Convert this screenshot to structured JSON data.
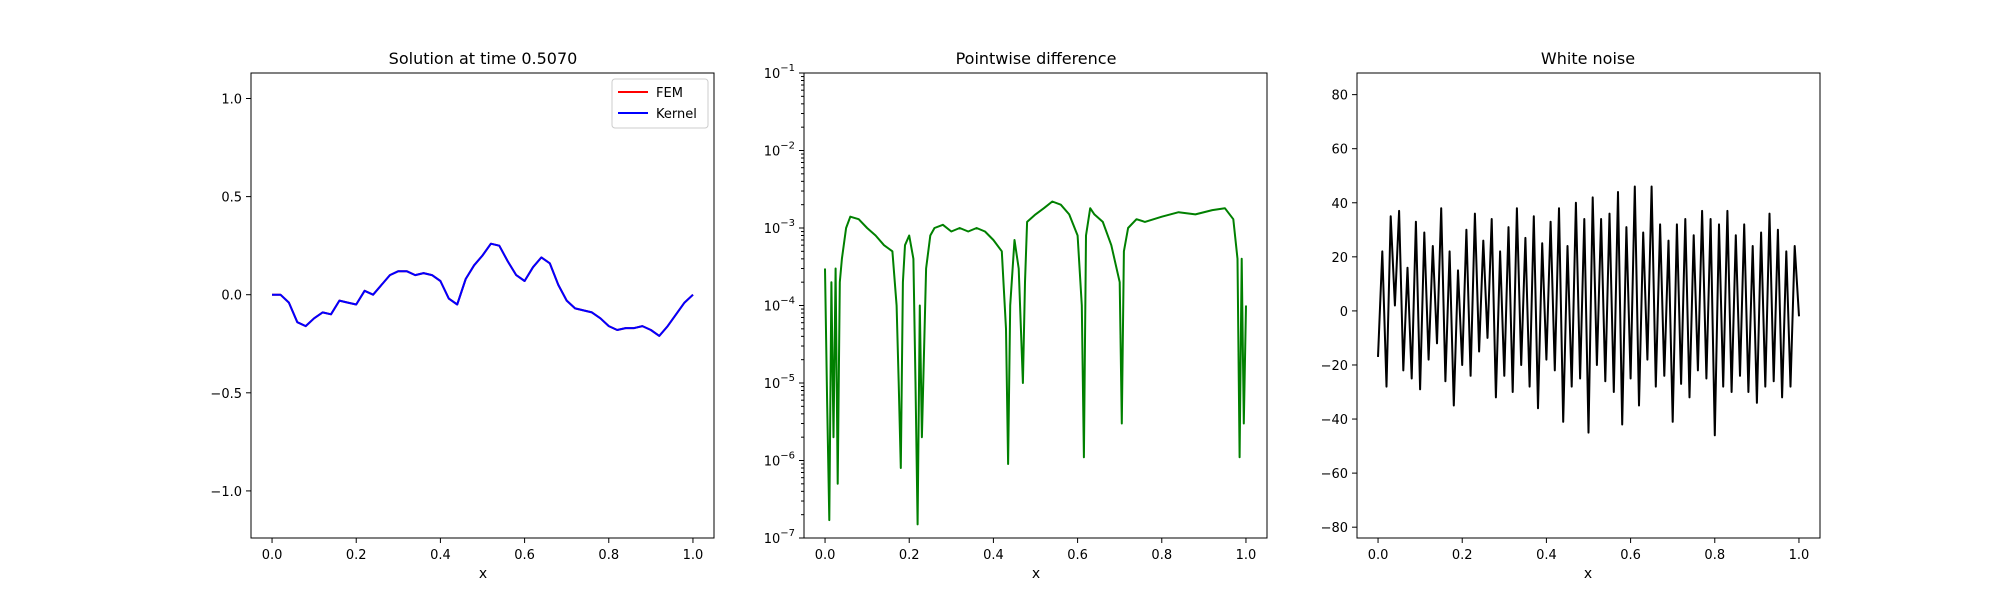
{
  "chart_data": [
    {
      "type": "line",
      "title": "Solution at time 0.5070",
      "xlabel": "x",
      "ylabel": "",
      "xlim": [
        -0.05,
        1.05
      ],
      "ylim": [
        -1.24,
        1.13
      ],
      "xticks": [
        0.0,
        0.2,
        0.4,
        0.6,
        0.8,
        1.0
      ],
      "xtick_labels": [
        "0.0",
        "0.2",
        "0.4",
        "0.6",
        "0.8",
        "1.0"
      ],
      "yticks": [
        -1.0,
        -0.5,
        0.0,
        0.5,
        1.0
      ],
      "ytick_labels": [
        "−1.0",
        "−0.5",
        "0.0",
        "0.5",
        "1.0"
      ],
      "legend_position": "top-right",
      "series": [
        {
          "name": "FEM",
          "color": "#ff0000",
          "x": [
            0.0,
            0.02,
            0.04,
            0.06,
            0.08,
            0.1,
            0.12,
            0.14,
            0.16,
            0.18,
            0.2,
            0.22,
            0.24,
            0.26,
            0.28,
            0.3,
            0.32,
            0.34,
            0.36,
            0.38,
            0.4,
            0.42,
            0.44,
            0.46,
            0.48,
            0.5,
            0.52,
            0.54,
            0.56,
            0.58,
            0.6,
            0.62,
            0.64,
            0.66,
            0.68,
            0.7,
            0.72,
            0.74,
            0.76,
            0.78,
            0.8,
            0.82,
            0.84,
            0.86,
            0.88,
            0.9,
            0.92,
            0.94,
            0.96,
            0.98,
            1.0
          ],
          "y": [
            0.0,
            0.0,
            -0.04,
            -0.14,
            -0.16,
            -0.12,
            -0.09,
            -0.1,
            -0.03,
            -0.04,
            -0.05,
            0.02,
            0.0,
            0.05,
            0.1,
            0.12,
            0.12,
            0.1,
            0.11,
            0.1,
            0.07,
            -0.02,
            -0.05,
            0.08,
            0.15,
            0.2,
            0.26,
            0.25,
            0.17,
            0.1,
            0.07,
            0.14,
            0.19,
            0.16,
            0.05,
            -0.03,
            -0.07,
            -0.08,
            -0.09,
            -0.12,
            -0.16,
            -0.18,
            -0.17,
            -0.17,
            -0.16,
            -0.18,
            -0.21,
            -0.16,
            -0.1,
            -0.04,
            0.0
          ]
        },
        {
          "name": "Kernel",
          "color": "#0000ff",
          "x": [
            0.0,
            0.02,
            0.04,
            0.06,
            0.08,
            0.1,
            0.12,
            0.14,
            0.16,
            0.18,
            0.2,
            0.22,
            0.24,
            0.26,
            0.28,
            0.3,
            0.32,
            0.34,
            0.36,
            0.38,
            0.4,
            0.42,
            0.44,
            0.46,
            0.48,
            0.5,
            0.52,
            0.54,
            0.56,
            0.58,
            0.6,
            0.62,
            0.64,
            0.66,
            0.68,
            0.7,
            0.72,
            0.74,
            0.76,
            0.78,
            0.8,
            0.82,
            0.84,
            0.86,
            0.88,
            0.9,
            0.92,
            0.94,
            0.96,
            0.98,
            1.0
          ],
          "y": [
            0.0,
            0.0,
            -0.04,
            -0.14,
            -0.16,
            -0.12,
            -0.09,
            -0.1,
            -0.03,
            -0.04,
            -0.05,
            0.02,
            0.0,
            0.05,
            0.1,
            0.12,
            0.12,
            0.1,
            0.11,
            0.1,
            0.07,
            -0.02,
            -0.05,
            0.08,
            0.15,
            0.2,
            0.26,
            0.25,
            0.17,
            0.1,
            0.07,
            0.14,
            0.19,
            0.16,
            0.05,
            -0.03,
            -0.07,
            -0.08,
            -0.09,
            -0.12,
            -0.16,
            -0.18,
            -0.17,
            -0.17,
            -0.16,
            -0.18,
            -0.21,
            -0.16,
            -0.1,
            -0.04,
            0.0
          ]
        }
      ]
    },
    {
      "type": "line",
      "title": "Pointwise difference",
      "xlabel": "x",
      "ylabel": "",
      "yscale": "log",
      "xlim": [
        -0.05,
        1.05
      ],
      "ylim": [
        1e-07,
        0.1
      ],
      "xticks": [
        0.0,
        0.2,
        0.4,
        0.6,
        0.8,
        1.0
      ],
      "xtick_labels": [
        "0.0",
        "0.2",
        "0.4",
        "0.6",
        "0.8",
        "1.0"
      ],
      "yticks": [
        1e-07,
        1e-06,
        1e-05,
        0.0001,
        0.001,
        0.01,
        0.1
      ],
      "ytick_bases": [
        "10",
        "10",
        "10",
        "10",
        "10",
        "10",
        "10"
      ],
      "ytick_exponents": [
        "−7",
        "−6",
        "−5",
        "−4",
        "−3",
        "−2",
        "−1"
      ],
      "series": [
        {
          "color": "#008000",
          "x": [
            0.0,
            0.005,
            0.01,
            0.015,
            0.02,
            0.025,
            0.03,
            0.035,
            0.04,
            0.05,
            0.06,
            0.08,
            0.1,
            0.12,
            0.14,
            0.16,
            0.17,
            0.175,
            0.18,
            0.185,
            0.19,
            0.2,
            0.21,
            0.215,
            0.22,
            0.225,
            0.23,
            0.24,
            0.25,
            0.26,
            0.28,
            0.3,
            0.32,
            0.34,
            0.36,
            0.38,
            0.4,
            0.42,
            0.43,
            0.435,
            0.44,
            0.45,
            0.46,
            0.47,
            0.475,
            0.48,
            0.5,
            0.52,
            0.54,
            0.56,
            0.58,
            0.6,
            0.61,
            0.615,
            0.62,
            0.63,
            0.64,
            0.66,
            0.68,
            0.7,
            0.705,
            0.71,
            0.72,
            0.74,
            0.76,
            0.8,
            0.84,
            0.88,
            0.92,
            0.95,
            0.97,
            0.98,
            0.985,
            0.99,
            0.995,
            1.0
          ],
          "y": [
            0.0003,
            6e-06,
            1.7e-07,
            0.0002,
            2e-06,
            0.0003,
            5e-07,
            0.0002,
            0.0004,
            0.001,
            0.0014,
            0.0013,
            0.001,
            0.0008,
            0.0006,
            0.0005,
            0.0001,
            1e-05,
            8e-07,
            0.0002,
            0.0006,
            0.0008,
            0.0004,
            1e-05,
            1.5e-07,
            0.0001,
            2e-06,
            0.0003,
            0.0008,
            0.001,
            0.0011,
            0.0009,
            0.001,
            0.0009,
            0.001,
            0.0009,
            0.0007,
            0.0005,
            5e-05,
            9e-07,
            0.0001,
            0.0007,
            0.0003,
            1e-05,
            0.0002,
            0.0012,
            0.0015,
            0.0018,
            0.0022,
            0.002,
            0.0015,
            0.0008,
            0.0001,
            1.1e-06,
            0.0008,
            0.0018,
            0.0015,
            0.0012,
            0.0006,
            0.0002,
            3e-06,
            0.0005,
            0.001,
            0.0013,
            0.0012,
            0.0014,
            0.0016,
            0.0015,
            0.0017,
            0.0018,
            0.0013,
            0.0004,
            1.1e-06,
            0.0004,
            3e-06,
            0.0001
          ]
        }
      ]
    },
    {
      "type": "line",
      "title": "White noise",
      "xlabel": "x",
      "ylabel": "",
      "xlim": [
        -0.05,
        1.05
      ],
      "ylim": [
        -84,
        88
      ],
      "xticks": [
        0.0,
        0.2,
        0.4,
        0.6,
        0.8,
        1.0
      ],
      "xtick_labels": [
        "0.0",
        "0.2",
        "0.4",
        "0.6",
        "0.8",
        "1.0"
      ],
      "yticks": [
        -80,
        -60,
        -40,
        -20,
        0,
        20,
        40,
        60,
        80
      ],
      "ytick_labels": [
        "−80",
        "−60",
        "−40",
        "−20",
        "0",
        "20",
        "40",
        "60",
        "80"
      ],
      "series": [
        {
          "color": "#000000",
          "x": [
            0.0,
            0.01,
            0.02,
            0.03,
            0.04,
            0.05,
            0.06,
            0.07,
            0.08,
            0.09,
            0.1,
            0.11,
            0.12,
            0.13,
            0.14,
            0.15,
            0.16,
            0.17,
            0.18,
            0.19,
            0.2,
            0.21,
            0.22,
            0.23,
            0.24,
            0.25,
            0.26,
            0.27,
            0.28,
            0.29,
            0.3,
            0.31,
            0.32,
            0.33,
            0.34,
            0.35,
            0.36,
            0.37,
            0.38,
            0.39,
            0.4,
            0.41,
            0.42,
            0.43,
            0.44,
            0.45,
            0.46,
            0.47,
            0.48,
            0.49,
            0.5,
            0.51,
            0.52,
            0.53,
            0.54,
            0.55,
            0.56,
            0.57,
            0.58,
            0.59,
            0.6,
            0.61,
            0.62,
            0.63,
            0.64,
            0.65,
            0.66,
            0.67,
            0.68,
            0.69,
            0.7,
            0.71,
            0.72,
            0.73,
            0.74,
            0.75,
            0.76,
            0.77,
            0.78,
            0.79,
            0.8,
            0.81,
            0.82,
            0.83,
            0.84,
            0.85,
            0.86,
            0.87,
            0.88,
            0.89,
            0.9,
            0.91,
            0.92,
            0.93,
            0.94,
            0.95,
            0.96,
            0.97,
            0.98,
            0.99,
            1.0
          ],
          "y": [
            -17,
            22,
            -28,
            35,
            2,
            37,
            -22,
            16,
            -25,
            33,
            -29,
            29,
            -18,
            24,
            -12,
            38,
            -26,
            22,
            -35,
            15,
            -20,
            30,
            -24,
            36,
            -15,
            26,
            -10,
            34,
            -32,
            22,
            -24,
            31,
            -30,
            38,
            -20,
            27,
            -28,
            35,
            -36,
            25,
            -18,
            33,
            -22,
            38,
            -41,
            24,
            -28,
            40,
            -25,
            34,
            -45,
            42,
            -20,
            34,
            -26,
            36,
            -30,
            44,
            -42,
            31,
            -25,
            46,
            -35,
            29,
            -18,
            46,
            -28,
            32,
            -24,
            26,
            -41,
            32,
            -27,
            34,
            -32,
            28,
            -22,
            37,
            -25,
            34,
            -46,
            32,
            -28,
            37,
            -30,
            28,
            -24,
            32,
            -30,
            24,
            -34,
            29,
            -28,
            36,
            -26,
            30,
            -32,
            22,
            -28,
            24,
            -2
          ]
        }
      ]
    }
  ]
}
